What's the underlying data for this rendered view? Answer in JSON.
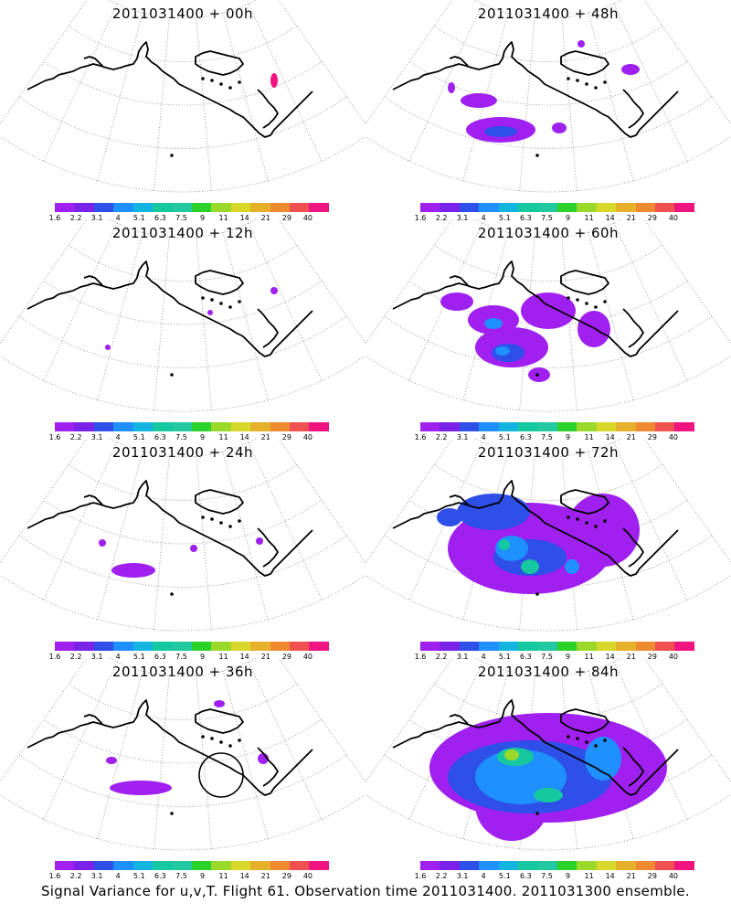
{
  "panels": [
    {
      "title": "2011031400 + 00h"
    },
    {
      "title": "2011031400 + 48h"
    },
    {
      "title": "2011031400 + 12h"
    },
    {
      "title": "2011031400 + 60h"
    },
    {
      "title": "2011031400 + 24h"
    },
    {
      "title": "2011031400 + 72h"
    },
    {
      "title": "2011031400 + 36h"
    },
    {
      "title": "2011031400 + 84h"
    }
  ],
  "colorbar": {
    "labels": [
      "1.6",
      "2.2",
      "3.1",
      "4",
      "5.1",
      "6.3",
      "7.5",
      "9",
      "11",
      "14",
      "21",
      "29",
      "40"
    ],
    "colors": [
      "#a020f0",
      "#7a22e8",
      "#2e4fe8",
      "#1e90ff",
      "#14b4e0",
      "#16c8a0",
      "#22c8a0",
      "#2ad22a",
      "#9ad82a",
      "#d8d82a",
      "#e6b02a",
      "#f08a30",
      "#f05050",
      "#f01480"
    ]
  },
  "caption": "Signal Variance for u,v,T. Flight 61. Observation time 2011031400. 2011031300 ensemble."
}
